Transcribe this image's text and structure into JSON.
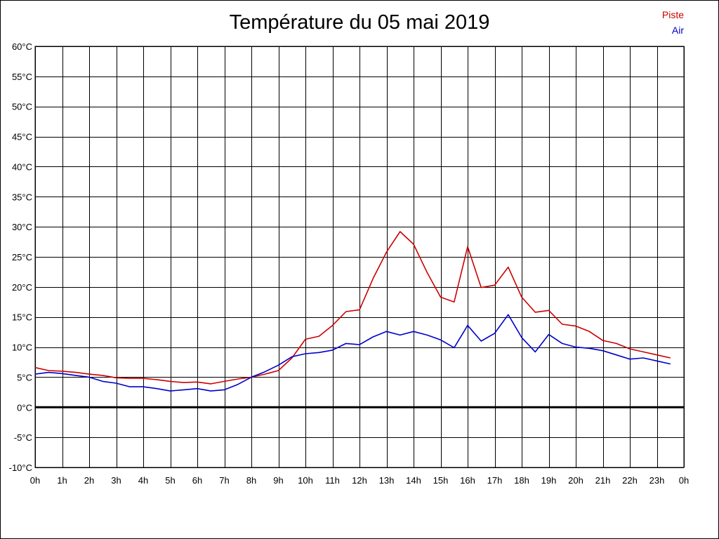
{
  "chart_data": {
    "type": "line",
    "title": "Température du 05 mai 2019",
    "xlabel": "",
    "ylabel": "",
    "ylim": [
      -10,
      60
    ],
    "y_ticks": [
      -10,
      -5,
      0,
      5,
      10,
      15,
      20,
      25,
      30,
      35,
      40,
      45,
      50,
      55,
      60
    ],
    "y_tick_labels": [
      "-10°C",
      "-5°C",
      "0°C",
      "5°C",
      "10°C",
      "15°C",
      "20°C",
      "25°C",
      "30°C",
      "35°C",
      "40°C",
      "45°C",
      "50°C",
      "55°C",
      "60°C"
    ],
    "xlim": [
      0,
      24
    ],
    "x_ticks": [
      0,
      1,
      2,
      3,
      4,
      5,
      6,
      7,
      8,
      9,
      10,
      11,
      12,
      13,
      14,
      15,
      16,
      17,
      18,
      19,
      20,
      21,
      22,
      23,
      24
    ],
    "x_tick_labels": [
      "0h",
      "1h",
      "2h",
      "3h",
      "4h",
      "5h",
      "6h",
      "7h",
      "8h",
      "9h",
      "10h",
      "11h",
      "12h",
      "13h",
      "14h",
      "15h",
      "16h",
      "17h",
      "18h",
      "19h",
      "20h",
      "21h",
      "22h",
      "23h",
      "0h"
    ],
    "grid": true,
    "zero_line": true,
    "legend_position": "top-right",
    "x": [
      0,
      0.5,
      1,
      1.5,
      2,
      2.5,
      3,
      3.5,
      4,
      4.5,
      5,
      5.5,
      6,
      6.5,
      7,
      7.5,
      8,
      8.5,
      9,
      9.5,
      10,
      10.5,
      11,
      11.5,
      12,
      12.5,
      13,
      13.5,
      14,
      14.5,
      15,
      15.5,
      16,
      16.5,
      17,
      17.5,
      18,
      18.5,
      19,
      19.5,
      20,
      20.5,
      21,
      21.5,
      22,
      22.5,
      23,
      23.5
    ],
    "series": [
      {
        "name": "Piste",
        "color": "#cc0000",
        "values": [
          6.6,
          6.1,
          6.0,
          5.8,
          5.5,
          5.3,
          4.9,
          4.8,
          4.8,
          4.6,
          4.3,
          4.1,
          4.2,
          3.9,
          4.3,
          4.7,
          5.0,
          5.5,
          6.1,
          8.2,
          11.3,
          11.8,
          13.6,
          15.9,
          16.2,
          21.4,
          25.8,
          29.2,
          27.1,
          22.4,
          18.3,
          17.5,
          26.7,
          19.9,
          20.3,
          23.3,
          18.3,
          15.8,
          16.1,
          13.8,
          13.5,
          12.6,
          11.1,
          10.6,
          9.7,
          9.2,
          8.7,
          8.2
        ]
      },
      {
        "name": "Air",
        "color": "#0000cc",
        "values": [
          5.5,
          5.8,
          5.6,
          5.3,
          5.0,
          4.3,
          4.0,
          3.4,
          3.4,
          3.1,
          2.7,
          2.9,
          3.1,
          2.7,
          2.9,
          3.8,
          5.0,
          5.9,
          7.0,
          8.4,
          8.9,
          9.1,
          9.5,
          10.6,
          10.4,
          11.7,
          12.6,
          12.0,
          12.6,
          12.0,
          11.2,
          9.9,
          13.6,
          11.0,
          12.3,
          15.4,
          11.6,
          9.2,
          12.1,
          10.6,
          10.0,
          9.8,
          9.4,
          8.7,
          8.0,
          8.2,
          7.7,
          7.2
        ]
      }
    ]
  }
}
